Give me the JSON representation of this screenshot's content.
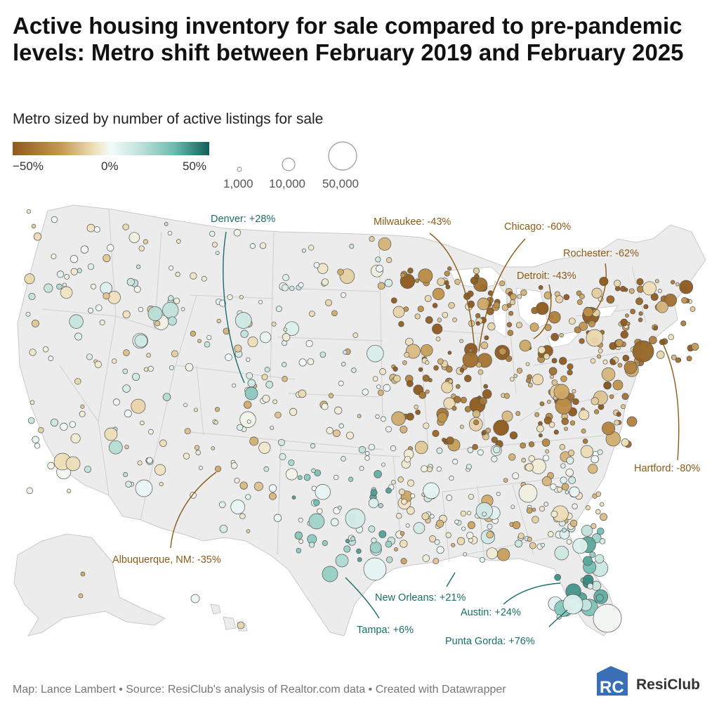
{
  "title": "Active housing inventory for sale compared to pre-pandemic levels: Metro shift between February 2019 and February 2025",
  "subtitle": "Metro sized by number of active listings for sale",
  "legend": {
    "color_scale": {
      "min_label": "−50%",
      "mid_label": "0%",
      "max_label": "50%",
      "colors": [
        "#8e5a1d",
        "#c69a52",
        "#f0e2bd",
        "#f2fbfb",
        "#bfe1da",
        "#6ebcb0",
        "#0f5f57"
      ]
    },
    "size_scale": [
      "1,000",
      "10,000",
      "50,000"
    ]
  },
  "annotations": [
    {
      "label": "Denver: +28%",
      "value": 28,
      "color": "#1a6e66"
    },
    {
      "label": "Milwaukee: -43%",
      "value": -43,
      "color": "#8b5a17"
    },
    {
      "label": "Chicago: -60%",
      "value": -60,
      "color": "#8b5a17"
    },
    {
      "label": "Rochester: -62%",
      "value": -62,
      "color": "#8b5a17"
    },
    {
      "label": "Detroit: -43%",
      "value": -43,
      "color": "#8b5a17"
    },
    {
      "label": "Hartford: -80%",
      "value": -80,
      "color": "#8b5a17"
    },
    {
      "label": "Albuquerque, NM: -35%",
      "value": -35,
      "color": "#8b5a17"
    },
    {
      "label": "New Orleans: +21%",
      "value": 21,
      "color": "#1a6e66"
    },
    {
      "label": "Austin: +24%",
      "value": 24,
      "color": "#1a6e66"
    },
    {
      "label": "Tampa: +6%",
      "value": 6,
      "color": "#1a6e66"
    },
    {
      "label": "Punta Gorda: +76%",
      "value": 76,
      "color": "#1a6e66"
    }
  ],
  "footer": "Map: Lance Lambert • Source: ResiClub's analysis of Realtor.com data • Created with Datawrapper",
  "logo": {
    "text": "ResiClub",
    "mark": "RC",
    "color": "#2b6cb0"
  },
  "colors": {
    "map_fill": "#ececec",
    "state_border": "#c9c9c9",
    "negative": "#8b5a17",
    "positive": "#1a6e66"
  }
}
